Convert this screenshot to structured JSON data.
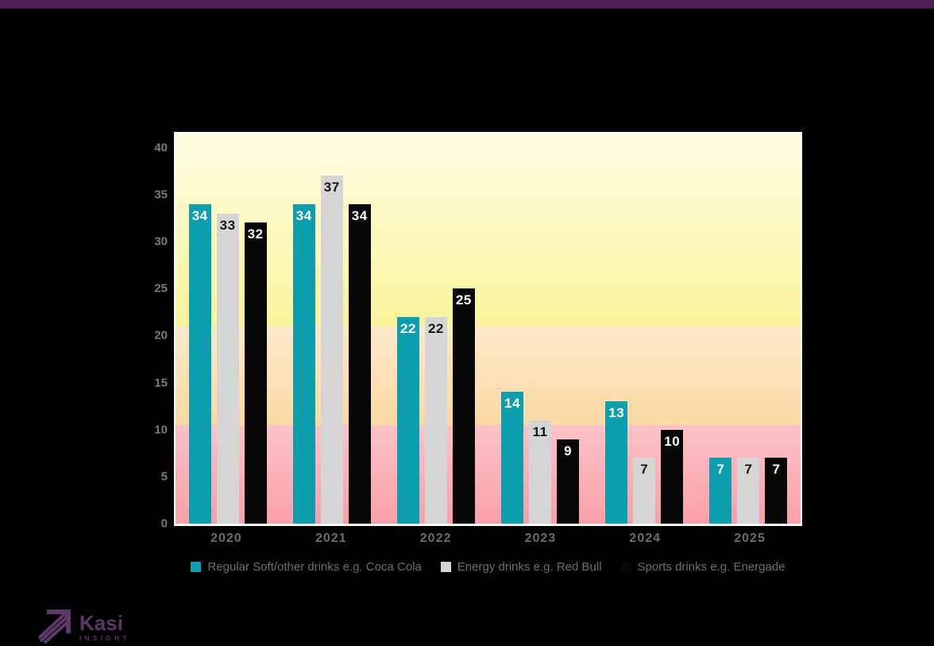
{
  "window": {
    "background": "#000000",
    "top_bar_color": "#4a2152"
  },
  "chart_data": {
    "type": "bar",
    "title": "",
    "xlabel": "",
    "ylabel": "",
    "categories": [
      "2020",
      "2021",
      "2022",
      "2023",
      "2024",
      "2025"
    ],
    "series": [
      {
        "name": "Regular Soft/other drinks e.g. Coca Cola",
        "color": "#0d9eae",
        "label_color": "#ffffff",
        "values": [
          34,
          34,
          22,
          14,
          13,
          7
        ]
      },
      {
        "name": "Energy drinks e.g. Red Bull",
        "color": "#d5d5d5",
        "label_color": "#141414",
        "values": [
          33,
          37,
          22,
          11,
          7,
          7
        ]
      },
      {
        "name": "Sports drinks e.g. Energade",
        "color": "#070707",
        "label_color": "#ffffff",
        "values": [
          32,
          34,
          25,
          9,
          10,
          7
        ]
      }
    ],
    "y_ticks": [
      0,
      5,
      10,
      15,
      20,
      25,
      30,
      35,
      40
    ],
    "ylim": [
      0,
      41.5
    ],
    "grid": false,
    "legend_position": "bottom",
    "axis_text_color": "#7b7b7b",
    "x_axis_text_color": "#6d6d6d",
    "legend_text_color": "#6e6e6e",
    "background_bands": [
      {
        "range": [
          21,
          41.5
        ],
        "top": "#fffce3",
        "bottom": "#f9f49a"
      },
      {
        "range": [
          10.5,
          21
        ],
        "top": "#fce9c9",
        "bottom": "#fbd8a3"
      },
      {
        "range": [
          0,
          10.5
        ],
        "top": "#fbc3c6",
        "bottom": "#f99faa"
      }
    ]
  },
  "logo": {
    "brand": "Kasi",
    "tagline": "INSIGHT",
    "color": "#5a3a64"
  }
}
